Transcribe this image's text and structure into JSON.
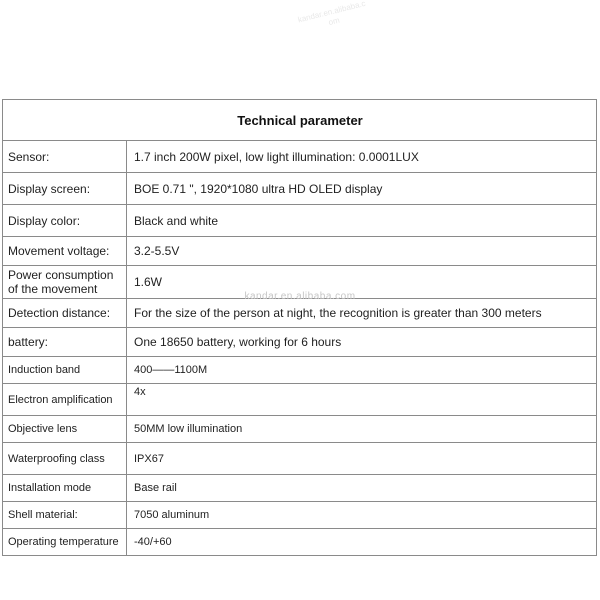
{
  "watermark": {
    "top_text": "kandar.en.alibaba.com",
    "mid_text": "kandar.en.alibaba.com"
  },
  "colors": {
    "border": "#8a8a8a",
    "text": "#1f1f1f",
    "watermark_gray": "#c6c6c6"
  },
  "table": {
    "title": "Technical parameter",
    "rows": [
      {
        "label": "Sensor:",
        "value": "1.7 inch 200W pixel, low light illumination: 0.0001LUX",
        "size": "large",
        "tall": true
      },
      {
        "label": "Display screen:",
        "value": "BOE 0.71 \", 1920*1080 ultra HD OLED display",
        "size": "large",
        "tall": true
      },
      {
        "label": "Display color:",
        "value": "Black and white",
        "size": "large",
        "tall": true
      },
      {
        "label": "Movement voltage:",
        "value": "3.2-5.5V",
        "size": "large",
        "tall": false
      },
      {
        "label": "Power consumption of the movement",
        "value": "1.6W",
        "size": "large",
        "tall": false
      },
      {
        "label": "Detection distance:",
        "value": "For the size of the person at night, the recognition is greater than 300 meters",
        "size": "large",
        "tall": false
      },
      {
        "label": "battery:",
        "value": "One 18650 battery, working for 6 hours",
        "size": "large",
        "tall": false
      },
      {
        "label": "Induction band",
        "value": "400——1100M",
        "size": "small",
        "tall": false
      },
      {
        "label": "Electron amplification",
        "value": "4x",
        "size": "small",
        "tall": true,
        "valign": "top"
      },
      {
        "label": "Objective lens",
        "value": "50MM low illumination",
        "size": "small",
        "tall": false
      },
      {
        "label": "Waterproofing class",
        "value": "IPX67",
        "size": "small",
        "tall": true
      },
      {
        "label": "Installation mode",
        "value": "Base rail",
        "size": "small",
        "tall": false
      },
      {
        "label": "Shell material:",
        "value": "7050 aluminum",
        "size": "small",
        "tall": false
      },
      {
        "label": "Operating temperature",
        "value": "-40/+60",
        "size": "small",
        "tall": false
      }
    ]
  }
}
